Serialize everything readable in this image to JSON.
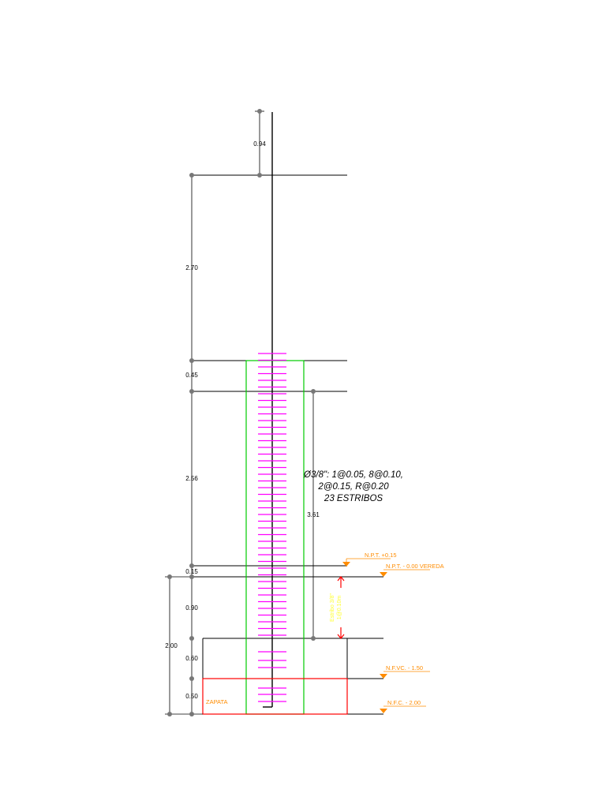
{
  "drawing": {
    "dimensions": {
      "d094": "0.94",
      "d270": "2.70",
      "d045": "0.45",
      "d256": "2.56",
      "d015": "0.15",
      "d090": "0.90",
      "d060": "0.60",
      "d050": "0.50",
      "d200": "2.00",
      "d361": "3.61"
    },
    "stirrup_note": {
      "line1": "Ø3/8\": 1@0.05, 8@0.10,",
      "line2": "2@0.15, R@0.20",
      "line3": "23 ESTRIBOS"
    },
    "levels": {
      "npt": "N.P.T. +0.15",
      "vereda": "N.P.T. - 0.00 VEREDA",
      "nfvc": "N.F.VC. - 1.50",
      "nfc": "N.F.C. - 2.00"
    },
    "zapata_label": "ZAPATA",
    "rotated_note": {
      "line1": "Estribo 3/8\"",
      "line2": "1@0.10m"
    },
    "colors": {
      "outline": "#000000",
      "column": "#00cc00",
      "stirrups": "#ff00ff",
      "footing": "#ff0000",
      "levels": "#ff8c00",
      "note": "#ffff33",
      "dimension_nodes": "#777777"
    }
  }
}
